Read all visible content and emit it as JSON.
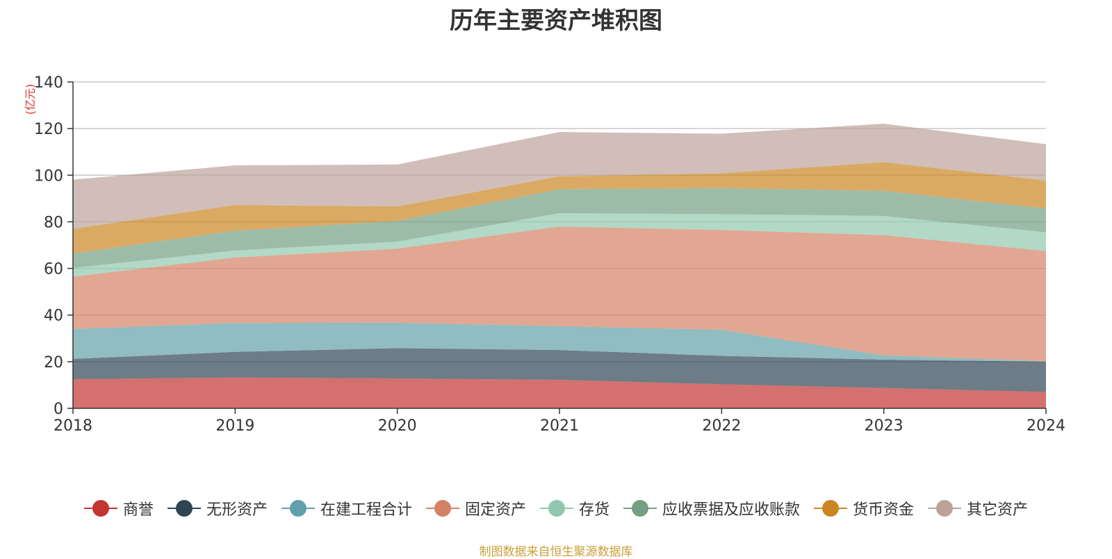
{
  "chart_data": {
    "type": "area",
    "stacked": true,
    "title": "历年主要资产堆积图",
    "ylabel": "(亿元)",
    "x": [
      "2018",
      "2019",
      "2020",
      "2021",
      "2022",
      "2023",
      "2024"
    ],
    "ylim": [
      0,
      140
    ],
    "yticks": [
      0,
      20,
      40,
      60,
      80,
      100,
      120,
      140
    ],
    "grid": true,
    "legend_position": "bottom",
    "series": [
      {
        "name": "商誉",
        "color": "#c23531",
        "values": [
          12.5,
          13.2,
          12.8,
          12.2,
          10.3,
          8.7,
          7.0
        ]
      },
      {
        "name": "无形资产",
        "color": "#2f4554",
        "values": [
          8.7,
          11.0,
          13.0,
          12.8,
          12.2,
          12.2,
          13.0
        ]
      },
      {
        "name": "在建工程合计",
        "color": "#61a0a8",
        "values": [
          12.8,
          12.4,
          10.9,
          10.2,
          11.2,
          1.8,
          0.2
        ]
      },
      {
        "name": "固定资产",
        "color": "#d48265",
        "values": [
          22.5,
          28.1,
          31.8,
          42.8,
          42.8,
          51.6,
          47.3
        ]
      },
      {
        "name": "存货",
        "color": "#91c7ae",
        "values": [
          3.7,
          3.0,
          3.0,
          5.7,
          6.8,
          8.2,
          8.0
        ]
      },
      {
        "name": "应收票据及应收账款",
        "color": "#749f83",
        "values": [
          6.2,
          8.5,
          8.9,
          10.3,
          11.2,
          10.8,
          10.2
        ]
      },
      {
        "name": "货币资金",
        "color": "#ca8622",
        "values": [
          10.6,
          11.0,
          6.2,
          5.5,
          6.3,
          12.3,
          12.0
        ]
      },
      {
        "name": "其它资产",
        "color": "#bda29a",
        "values": [
          21.1,
          17.0,
          18.0,
          19.0,
          17.0,
          16.5,
          15.6
        ]
      }
    ]
  },
  "source_note": "制图数据来自恒生聚源数据库"
}
